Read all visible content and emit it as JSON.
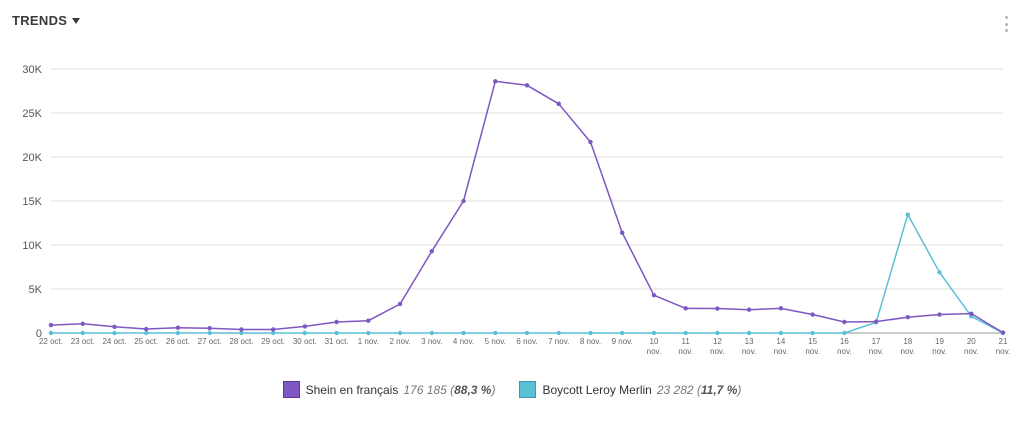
{
  "header": {
    "title": "TRENDS"
  },
  "legend": [
    {
      "name": "Shein en français",
      "total": "176 185",
      "pct_open": " (",
      "pct": "88,3 %",
      "pct_close": ")"
    },
    {
      "name": "Boycott Leroy Merlin",
      "total": "23 282",
      "pct_open": " (",
      "pct": "11,7 %",
      "pct_close": ")"
    }
  ],
  "chart_data": {
    "type": "line",
    "title": "",
    "xlabel": "",
    "ylabel": "",
    "ylim": [
      0,
      30000
    ],
    "yticks": [
      {
        "value": 0,
        "label": "0"
      },
      {
        "value": 5000,
        "label": "5K"
      },
      {
        "value": 10000,
        "label": "10K"
      },
      {
        "value": 15000,
        "label": "15K"
      },
      {
        "value": 20000,
        "label": "20K"
      },
      {
        "value": 25000,
        "label": "25K"
      },
      {
        "value": 30000,
        "label": "30K"
      }
    ],
    "grid": true,
    "legend_position": "bottom",
    "categories": [
      [
        "22 oct."
      ],
      [
        "23 oct."
      ],
      [
        "24 oct."
      ],
      [
        "25 oct."
      ],
      [
        "26 oct."
      ],
      [
        "27 oct."
      ],
      [
        "28 oct."
      ],
      [
        "29 oct."
      ],
      [
        "30 oct."
      ],
      [
        "31 oct."
      ],
      [
        "1 nov."
      ],
      [
        "2 nov."
      ],
      [
        "3 nov."
      ],
      [
        "4 nov."
      ],
      [
        "5 nov."
      ],
      [
        "6 nov."
      ],
      [
        "7 nov."
      ],
      [
        "8 nov."
      ],
      [
        "9 nov."
      ],
      [
        "10",
        "nov."
      ],
      [
        "11",
        "nov."
      ],
      [
        "12",
        "nov."
      ],
      [
        "13",
        "nov."
      ],
      [
        "14",
        "nov."
      ],
      [
        "15",
        "nov."
      ],
      [
        "16",
        "nov."
      ],
      [
        "17",
        "nov."
      ],
      [
        "18",
        "nov."
      ],
      [
        "19",
        "nov."
      ],
      [
        "20",
        "nov."
      ],
      [
        "21",
        "nov."
      ]
    ],
    "series": [
      {
        "name": "Shein en français",
        "color": "#7e57c2",
        "values": [
          900,
          1050,
          700,
          450,
          600,
          550,
          400,
          400,
          750,
          1250,
          1400,
          3300,
          9300,
          15000,
          28600,
          28150,
          26050,
          21700,
          11400,
          4300,
          2800,
          2780,
          2650,
          2800,
          2100,
          1250,
          1300,
          1800,
          2100,
          2200,
          50
        ]
      },
      {
        "name": "Boycott Leroy Merlin",
        "color": "#5bc0d6",
        "values": [
          0,
          0,
          0,
          0,
          0,
          0,
          0,
          0,
          0,
          0,
          0,
          0,
          0,
          0,
          0,
          0,
          0,
          0,
          0,
          0,
          0,
          0,
          0,
          0,
          0,
          0,
          1200,
          13450,
          6900,
          1900,
          0
        ]
      }
    ]
  }
}
